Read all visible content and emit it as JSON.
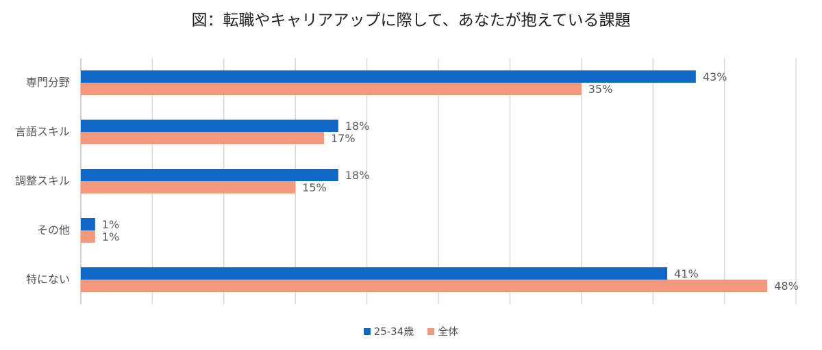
{
  "chart_data": {
    "type": "bar",
    "orientation": "horizontal",
    "title": "図：転職やキャリアアップに際して、あなたが抱えている課題",
    "categories": [
      "専門分野",
      "言語スキル",
      "調整スキル",
      "その他",
      "特にない"
    ],
    "series": [
      {
        "name": "25-34歳",
        "color": "#0f67c7",
        "values": [
          43,
          18,
          18,
          1,
          41
        ],
        "labels": [
          "43%",
          "18%",
          "18%",
          "1%",
          "41%"
        ]
      },
      {
        "name": "全体",
        "color": "#f4987c",
        "values": [
          35,
          17,
          15,
          1,
          48
        ],
        "labels": [
          "35%",
          "17%",
          "15%",
          "1%",
          "48%"
        ]
      }
    ],
    "xlim": [
      0,
      50
    ],
    "grid": true,
    "legend_position": "bottom"
  }
}
